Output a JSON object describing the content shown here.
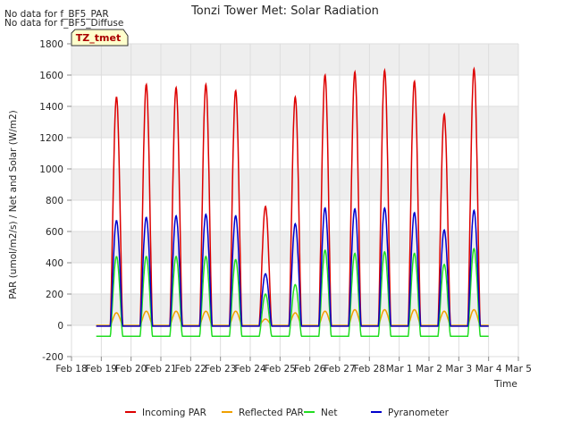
{
  "header": {
    "title": "Tonzi Tower Met: Solar Radiation",
    "note1": "No data for f_BF5_PAR",
    "note2": "No data for f_BF5_Diffuse",
    "badge": "TZ_tmet"
  },
  "chart_data": {
    "type": "line",
    "title": "Tonzi Tower Met: Solar Radiation",
    "xlabel": "Time",
    "ylabel": "PAR (umol/m2/s) / Net and Solar (W/m2)",
    "ylim": [
      -200,
      1800
    ],
    "yticks": [
      -200,
      0,
      200,
      400,
      600,
      800,
      1000,
      1200,
      1400,
      1600,
      1800
    ],
    "xlim": [
      0,
      15
    ],
    "xtick_labels": [
      "Feb 18",
      "Feb 19",
      "Feb 20",
      "Feb 21",
      "Feb 22",
      "Feb 23",
      "Feb 24",
      "Feb 25",
      "Feb 26",
      "Feb 27",
      "Feb 28",
      "Mar 1",
      "Mar 2",
      "Mar 3",
      "Mar 4",
      "Mar 5"
    ],
    "grid": true,
    "legend_position": "bottom",
    "first_day_start": 0.83,
    "day_peaks": [
      {
        "day": 1,
        "par": 1460,
        "refl": 80,
        "net": 440,
        "pyr": 670
      },
      {
        "day": 2,
        "par": 1540,
        "refl": 90,
        "net": 440,
        "pyr": 690
      },
      {
        "day": 3,
        "par": 1520,
        "refl": 90,
        "net": 440,
        "pyr": 700
      },
      {
        "day": 4,
        "par": 1540,
        "refl": 90,
        "net": 440,
        "pyr": 710
      },
      {
        "day": 5,
        "par": 1500,
        "refl": 90,
        "net": 420,
        "pyr": 700
      },
      {
        "day": 6,
        "par": 760,
        "refl": 40,
        "net": 200,
        "pyr": 330
      },
      {
        "day": 7,
        "par": 1460,
        "refl": 80,
        "net": 260,
        "pyr": 650
      },
      {
        "day": 8,
        "par": 1600,
        "refl": 90,
        "net": 480,
        "pyr": 750
      },
      {
        "day": 9,
        "par": 1620,
        "refl": 100,
        "net": 460,
        "pyr": 745
      },
      {
        "day": 10,
        "par": 1630,
        "refl": 100,
        "net": 470,
        "pyr": 750
      },
      {
        "day": 11,
        "par": 1560,
        "refl": 100,
        "net": 460,
        "pyr": 720
      },
      {
        "day": 12,
        "par": 1350,
        "refl": 90,
        "net": 390,
        "pyr": 610
      },
      {
        "day": 13,
        "par": 1640,
        "refl": 100,
        "net": 490,
        "pyr": 735
      }
    ],
    "series": [
      {
        "name": "Incoming PAR",
        "color": "#dd0000",
        "key": "par",
        "night": -5
      },
      {
        "name": "Reflected PAR",
        "color": "#f0a000",
        "key": "refl",
        "night": 0
      },
      {
        "name": "Net",
        "color": "#22dd22",
        "key": "net",
        "night": -70
      },
      {
        "name": "Pyranometer",
        "color": "#0000cc",
        "key": "pyr",
        "night": -5
      }
    ]
  }
}
